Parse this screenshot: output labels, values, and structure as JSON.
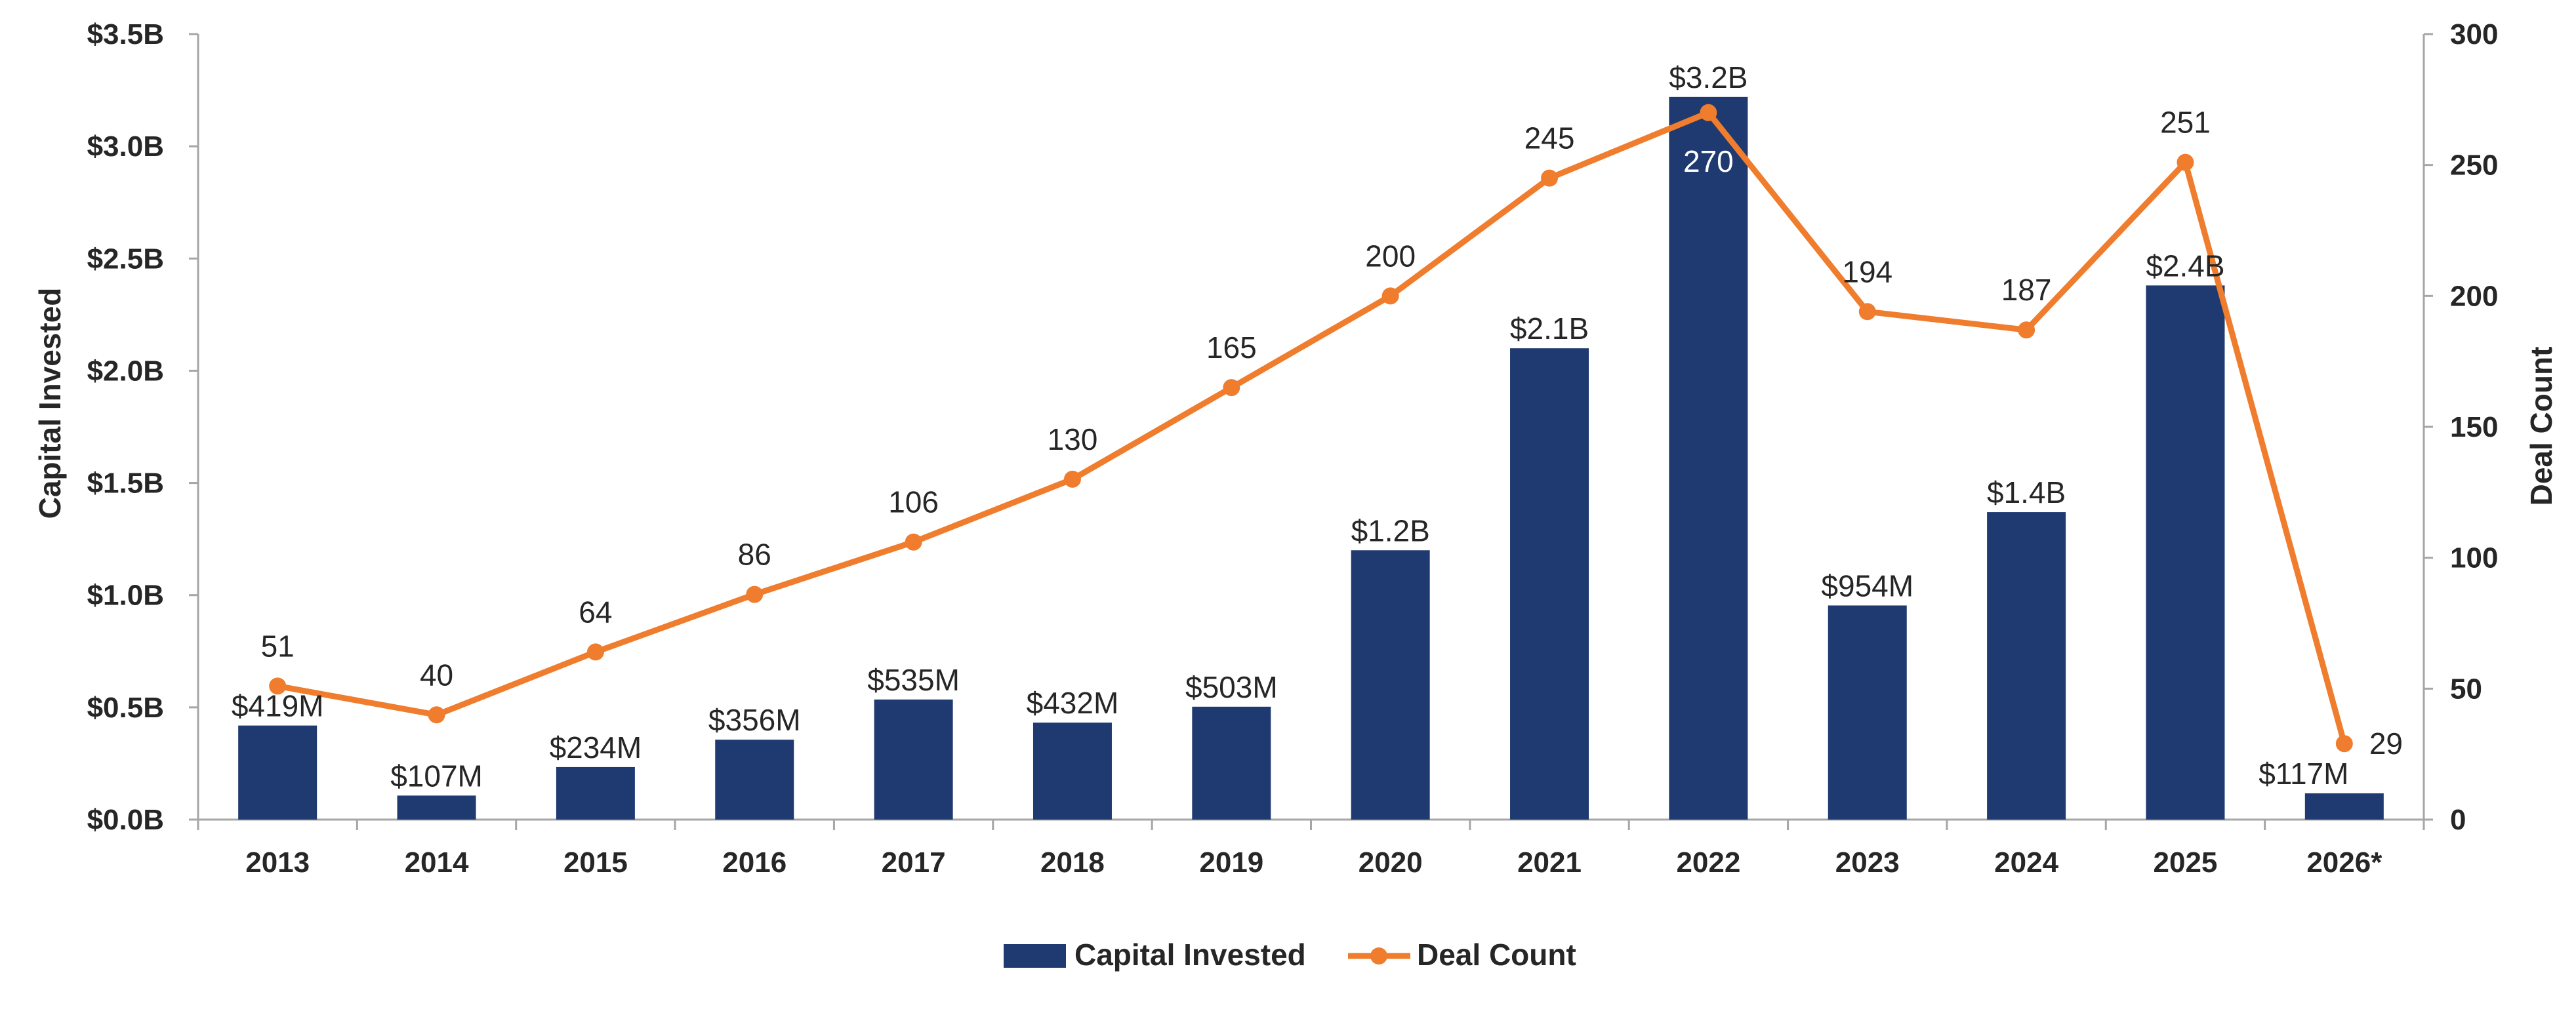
{
  "chart_data": {
    "type": "bar",
    "categories": [
      "2013",
      "2014",
      "2015",
      "2016",
      "2017",
      "2018",
      "2019",
      "2020",
      "2021",
      "2022",
      "2023",
      "2024",
      "2025",
      "2026*"
    ],
    "series": [
      {
        "name": "Capital Invested",
        "kind": "bar",
        "axis": "left",
        "color": "#1f3a70",
        "values": [
          0.419,
          0.107,
          0.234,
          0.356,
          0.535,
          0.432,
          0.503,
          1.2,
          2.1,
          3.22,
          0.954,
          1.37,
          2.38,
          0.117
        ],
        "labels": [
          "$419M",
          "$107M",
          "$234M",
          "$356M",
          "$535M",
          "$432M",
          "$503M",
          "$1.2B",
          "$2.1B",
          "$3.2B",
          "$954M",
          "$1.4B",
          "$2.4B",
          "$117M"
        ]
      },
      {
        "name": "Deal Count",
        "kind": "line",
        "axis": "right",
        "color": "#ef7d2d",
        "values": [
          51,
          40,
          64,
          86,
          106,
          130,
          165,
          200,
          245,
          270,
          194,
          187,
          251,
          29
        ],
        "labels": [
          "51",
          "40",
          "64",
          "86",
          "106",
          "130",
          "165",
          "200",
          "245",
          "270",
          "194",
          "187",
          "251",
          "29"
        ]
      }
    ],
    "title": "",
    "ylabel": "Capital Invested",
    "y2label": "Deal Count",
    "ylim": [
      0,
      3.5
    ],
    "y2lim": [
      0,
      300
    ],
    "yticks": [
      "$0.0B",
      "$0.5B",
      "$1.0B",
      "$1.5B",
      "$2.0B",
      "$2.5B",
      "$3.0B",
      "$3.5B"
    ],
    "y2ticks": [
      "0",
      "50",
      "100",
      "150",
      "200",
      "250",
      "300"
    ],
    "legend": {
      "position": "bottom-center",
      "entries": [
        "Capital Invested",
        "Deal Count"
      ]
    },
    "grid": false
  }
}
